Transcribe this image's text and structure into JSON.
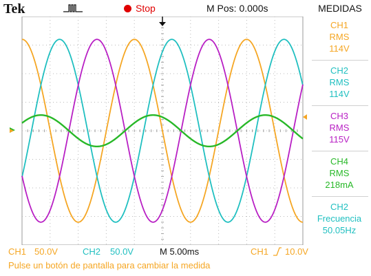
{
  "top": {
    "brand": "Tek",
    "trigger_icon": "pulse-trigger-icon",
    "acq_state": "Stop",
    "mpos": "M Pos: 0.000s"
  },
  "colors": {
    "ch1": "#f5a623",
    "ch2": "#1fbfc0",
    "ch3": "#b81fc4",
    "ch4": "#28b828",
    "stop": "#e00000"
  },
  "menu": {
    "title": "MEDIDAS",
    "measurements": [
      {
        "ch": "CH1",
        "type": "RMS",
        "value": "114V"
      },
      {
        "ch": "CH2",
        "type": "RMS",
        "value": "114V"
      },
      {
        "ch": "CH3",
        "type": "RMS",
        "value": "115V"
      },
      {
        "ch": "CH4",
        "type": "RMS",
        "value": "218mA"
      },
      {
        "ch": "CH2",
        "type": "Frecuencia",
        "value": "50.05Hz"
      }
    ]
  },
  "status": {
    "ch1_label": "CH1",
    "ch1_scale": "50.0V",
    "ch2_label": "CH2",
    "ch2_scale": "50.0V",
    "timebase": "M 5.00ms",
    "trig_source": "CH1",
    "trig_level": "10.0V"
  },
  "hint": "Pulse un botón de pantalla para cambiar la medida",
  "chart_data": {
    "type": "line",
    "x_unit": "ms",
    "xlim": [
      -25,
      25
    ],
    "ylim": [
      -4,
      4
    ],
    "x_divisions": 10,
    "y_divisions": 8,
    "grid": true,
    "series": [
      {
        "color": "#f5a623",
        "amplitude_div": 3.2,
        "phase_deg": 180,
        "offset_div": 0
      },
      {
        "color": "#1fbfc0",
        "amplitude_div": 3.2,
        "phase_deg": 60,
        "offset_div": 0
      },
      {
        "color": "#b81fc4",
        "amplitude_div": 3.2,
        "phase_deg": -60,
        "offset_div": 0
      },
      {
        "color": "#28b828",
        "amplitude_div": 0.55,
        "phase_deg": 120,
        "offset_div": 0
      }
    ],
    "frequency_hz": 50.05
  }
}
